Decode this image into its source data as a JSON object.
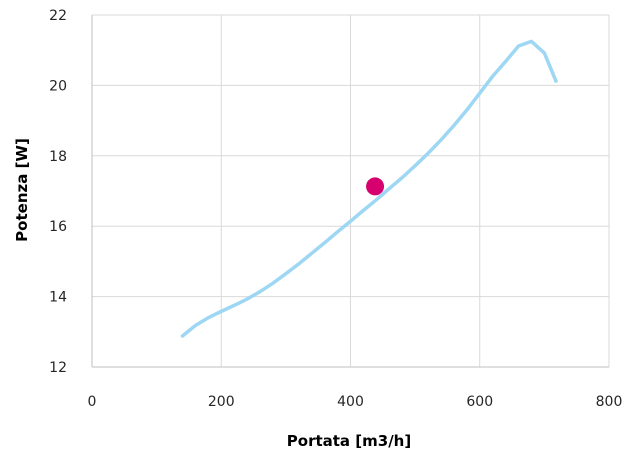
{
  "chart_data": {
    "type": "line",
    "xlabel": "Portata [m3/h]",
    "ylabel": "Potenza [W]",
    "xlim": [
      0,
      800
    ],
    "ylim": [
      12,
      22
    ],
    "xticks": [
      0,
      200,
      400,
      600,
      800
    ],
    "yticks": [
      12,
      14,
      16,
      18,
      20,
      22
    ],
    "grid": true,
    "series": [
      {
        "color": "#9dd7f3",
        "x": [
          140,
          160,
          180,
          200,
          220,
          240,
          260,
          280,
          300,
          320,
          340,
          360,
          380,
          400,
          420,
          440,
          460,
          480,
          500,
          520,
          540,
          560,
          580,
          600,
          620,
          640,
          660,
          680,
          700,
          718
        ],
        "y": [
          12.88,
          13.18,
          13.4,
          13.58,
          13.75,
          13.93,
          14.14,
          14.38,
          14.65,
          14.93,
          15.23,
          15.53,
          15.84,
          16.14,
          16.45,
          16.75,
          17.07,
          17.38,
          17.72,
          18.07,
          18.45,
          18.86,
          19.3,
          19.78,
          20.26,
          20.68,
          21.12,
          21.25,
          20.92,
          20.12
        ]
      }
    ],
    "highlight_point": {
      "x": 438,
      "y": 17.13,
      "color": "#d6006e"
    }
  }
}
